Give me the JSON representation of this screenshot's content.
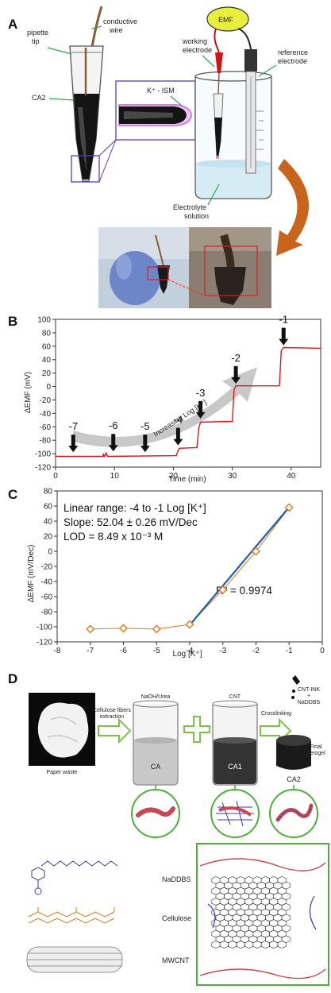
{
  "panel_a": {
    "letter": "A",
    "labels": {
      "conductive_wire": [
        "conductive",
        "wire"
      ],
      "pipette_tip": [
        "pipette",
        "tip"
      ],
      "ca2": "CA2",
      "ism": "K⁺ - ISM",
      "emf": "EMF",
      "working_electrode": [
        "working",
        "electrode"
      ],
      "reference_electrode": [
        "reference",
        "electrode"
      ],
      "electrolyte": [
        "Electrolyte",
        "solution"
      ]
    },
    "colors": {
      "emf_box": "#e6f03c",
      "ism_tip": "#d27fe0",
      "zoom_frame": "#5b3bb5",
      "arrow": "#c8641c",
      "solution": "#d6ecf5"
    }
  },
  "panel_b": {
    "letter": "B",
    "chart_data": {
      "type": "line",
      "xlabel": "Time (min)",
      "ylabel": "ΔEMF (mV)",
      "xlim": [
        0,
        45
      ],
      "ylim": [
        -120,
        100
      ],
      "xticks": [
        "0",
        "10",
        "20",
        "30",
        "40"
      ],
      "yticks": [
        "-120",
        "-100",
        "-80",
        "-60",
        "-40",
        "-20",
        "0",
        "20",
        "40",
        "60",
        "80",
        "100"
      ],
      "series": [
        {
          "color": "#e0141e",
          "x": [
            0,
            8.1,
            8.1,
            8.3,
            8.3,
            8.6,
            8.6,
            8.8,
            8.8,
            20.5,
            20.8,
            21,
            24,
            24.3,
            24.6,
            30,
            30.3,
            30.6,
            38,
            38.3,
            38.7,
            45
          ],
          "y": [
            -104,
            -104,
            -100,
            -104,
            -104,
            -99,
            -99,
            -104,
            -104,
            -103,
            -95,
            -92,
            -91,
            -62,
            -53,
            -52,
            -5,
            1,
            1,
            53,
            58,
            57
          ]
        }
      ],
      "annotations": [
        {
          "text": "-7",
          "x": 3,
          "y": -100
        },
        {
          "text": "-6",
          "x": 9.8,
          "y": -99
        },
        {
          "text": "-5",
          "x": 15.2,
          "y": -100
        },
        {
          "text": "-4",
          "x": 20.8,
          "y": -90
        },
        {
          "text": "-3",
          "x": 24.6,
          "y": -50
        },
        {
          "text": "-2",
          "x": 30.6,
          "y": 2
        },
        {
          "text": "-1",
          "x": 38.7,
          "y": 59
        }
      ],
      "arrow_label": "Increasing Log [K⁺]",
      "grid": false
    }
  },
  "panel_c": {
    "letter": "C",
    "info": {
      "line1": "Linear range: -4 to -1 Log [K⁺]",
      "line2": "Slope: 52.04 ± 0.26 mV/Dec",
      "line3": "LOD = 8.49 x 10⁻³ M"
    },
    "r2": "R² = 0.9974",
    "chart_data": {
      "type": "scatter",
      "xlabel": "Log [K⁺]",
      "ylabel": "ΔEMF (mV/Dec)",
      "xlim": [
        -8,
        0
      ],
      "ylim": [
        -120,
        80
      ],
      "xticks": [
        "-8",
        "-7",
        "-6",
        "-5",
        "-4",
        "-3",
        "-2",
        "-1",
        "0"
      ],
      "yticks": [
        "-120",
        "-100",
        "-80",
        "-60",
        "-40",
        "-20",
        "0",
        "20",
        "40",
        "60",
        "80"
      ],
      "points": {
        "x": [
          -7,
          -6,
          -5,
          -4,
          -3,
          -2,
          -1
        ],
        "y": [
          -103,
          -102,
          -103,
          -97,
          -51,
          0,
          58
        ]
      },
      "fit": {
        "x": [
          -4,
          -1
        ],
        "y": [
          -97.7,
          58.4
        ],
        "color": "#1f5fa8"
      },
      "marker_color": "#e0781e",
      "grid": false
    }
  },
  "panel_d": {
    "letter": "D",
    "labels": {
      "paper_waste": "Paper waste",
      "cellulose_extraction": [
        "Cellulose fibers",
        "extraction"
      ],
      "naoh_urea": "NaOH/Urea",
      "cnt": "CNT",
      "crosslinking": "Crosslinking",
      "cnt_ink": [
        "CNT-INK",
        "+",
        "NaDDBS"
      ],
      "final_aerogel": [
        "Final",
        "aerogel"
      ],
      "ca": "CA",
      "ca1": "CA1",
      "ca2": "CA2",
      "naddbs": "NaDDBS",
      "cellulose": "Cellulose",
      "mwcnt": "MWCNT"
    },
    "colors": {
      "arrow_green": "#7cc24a",
      "circle_green": "#4caf3c",
      "cellulose_red": "#c84850",
      "cnt_blue": "#3a3ab0"
    }
  }
}
